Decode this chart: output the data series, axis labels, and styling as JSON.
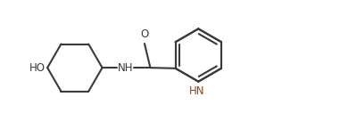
{
  "line_color": "#3a3a3a",
  "hn_color": "#8B4513",
  "background": "#ffffff",
  "line_width": 1.5,
  "font_size": 8.5,
  "label_HO": "HO",
  "label_O": "O",
  "label_NH": "NH",
  "label_HN": "HN",
  "xlim": [
    -0.3,
    10.2
  ],
  "ylim": [
    -1.6,
    1.8
  ]
}
